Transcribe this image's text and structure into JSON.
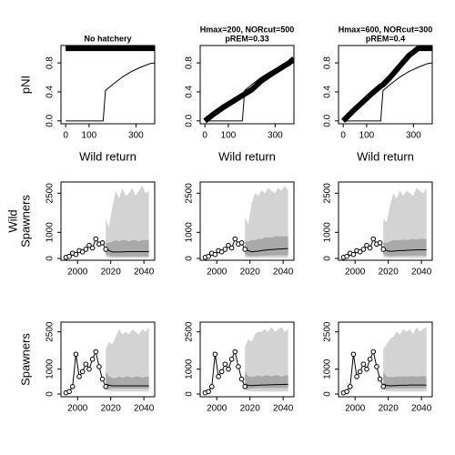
{
  "chart_data": [
    {
      "type": "line",
      "title": [
        "No hatchery"
      ],
      "xlabel": "Wild return",
      "ylabel": [
        "pNI"
      ],
      "x": [
        0,
        40,
        80,
        120,
        160,
        170,
        200,
        240,
        280,
        320,
        360,
        380
      ],
      "series": [
        {
          "color": "#000000",
          "width": 6,
          "values": [
            1,
            1,
            1,
            1,
            1,
            1,
            1,
            1,
            1,
            1,
            1,
            1
          ]
        },
        {
          "color": "#000000",
          "width": 1,
          "values": [
            0,
            0,
            0,
            0,
            0,
            0.42,
            0.5,
            0.6,
            0.68,
            0.74,
            0.79,
            0.8
          ]
        }
      ],
      "xlim": [
        -20,
        380
      ],
      "ylim": [
        -0.04,
        1.04
      ],
      "xticks": [
        0,
        100,
        300
      ],
      "yticks": [
        {
          "value": 0,
          "label": "0.0"
        },
        0.4,
        0.8
      ]
    },
    {
      "type": "line",
      "title": [
        "Hmax=200, NORcut=500",
        "pREM=0.33"
      ],
      "xlabel": "Wild return",
      "x": [
        0,
        40,
        80,
        120,
        160,
        170,
        200,
        240,
        280,
        320,
        360,
        380
      ],
      "series": [
        {
          "color": "#000000",
          "width": 6,
          "values": [
            0,
            0.1,
            0.19,
            0.27,
            0.35,
            0.37,
            0.43,
            0.55,
            0.64,
            0.72,
            0.8,
            0.86
          ]
        },
        {
          "color": "#000000",
          "width": 1,
          "values": [
            0,
            0,
            0,
            0,
            0,
            0.42,
            0.5,
            0.6,
            0.68,
            0.74,
            0.79,
            0.8
          ]
        }
      ],
      "xlim": [
        -20,
        380
      ],
      "ylim": [
        -0.04,
        1.04
      ],
      "xticks": [
        0,
        100,
        300
      ],
      "yticks": [
        {
          "value": 0,
          "label": "0.0"
        },
        0.4,
        0.8
      ]
    },
    {
      "type": "line",
      "title": [
        "Hmax=600, NORcut=300",
        "pREM=0.4"
      ],
      "xlabel": "Wild return",
      "x": [
        0,
        40,
        80,
        120,
        160,
        170,
        200,
        240,
        280,
        320,
        360,
        380
      ],
      "series": [
        {
          "color": "#000000",
          "width": 6,
          "values": [
            0,
            0.13,
            0.25,
            0.37,
            0.48,
            0.5,
            0.6,
            0.75,
            0.9,
            1,
            1,
            1
          ]
        },
        {
          "color": "#000000",
          "width": 1,
          "values": [
            0,
            0,
            0,
            0,
            0,
            0.42,
            0.5,
            0.6,
            0.68,
            0.74,
            0.79,
            0.8
          ]
        }
      ],
      "xlim": [
        -20,
        380
      ],
      "ylim": [
        -0.04,
        1.04
      ],
      "xticks": [
        0,
        100,
        300
      ],
      "yticks": [
        {
          "value": 0,
          "label": "0.0"
        },
        0.4,
        0.8
      ]
    },
    {
      "type": "band",
      "ylabel": [
        "Wild",
        "Spawners"
      ],
      "x": [
        1993,
        1995,
        1997,
        1999,
        2001,
        2003,
        2005,
        2007,
        2009,
        2011,
        2013,
        2015,
        2017
      ],
      "observed": [
        40,
        80,
        200,
        150,
        300,
        250,
        350,
        500,
        400,
        750,
        550,
        600,
        350
      ],
      "proj_x": [
        2017,
        2019,
        2021,
        2023,
        2025,
        2027,
        2029,
        2031,
        2033,
        2035,
        2037,
        2039,
        2041,
        2043
      ],
      "outer": {
        "color": "#d3d3d3",
        "upper": [
          1500,
          1200,
          2000,
          2600,
          2300,
          2700,
          2400,
          2500,
          2700,
          2400,
          2600,
          2800,
          2500,
          2600
        ],
        "lower": [
          50,
          30,
          20,
          20,
          20,
          20,
          20,
          20,
          20,
          20,
          20,
          20,
          20,
          20
        ]
      },
      "inner": {
        "color": "#a9a9a9",
        "upper": [
          600,
          600,
          650,
          700,
          650,
          700,
          700,
          650,
          700,
          700,
          650,
          700,
          700,
          700
        ],
        "lower": [
          150,
          100,
          80,
          80,
          80,
          80,
          80,
          80,
          80,
          80,
          80,
          80,
          80,
          80
        ]
      },
      "median": {
        "color": "#000000",
        "values": [
          350,
          300,
          250,
          250,
          250,
          250,
          260,
          260,
          260,
          260,
          260,
          260,
          260,
          260
        ]
      },
      "xlim": [
        1990,
        2046.5
      ],
      "ylim": [
        -70,
        2930
      ],
      "xticks": [
        2000,
        2020,
        2040
      ],
      "yticks": [
        0,
        1000,
        2500
      ]
    },
    {
      "type": "band",
      "x": [
        1993,
        1995,
        1997,
        1999,
        2001,
        2003,
        2005,
        2007,
        2009,
        2011,
        2013,
        2015,
        2017
      ],
      "observed": [
        40,
        80,
        200,
        150,
        300,
        250,
        350,
        500,
        400,
        750,
        550,
        600,
        350
      ],
      "proj_x": [
        2017,
        2019,
        2021,
        2023,
        2025,
        2027,
        2029,
        2031,
        2033,
        2035,
        2037,
        2039,
        2041,
        2043
      ],
      "outer": {
        "color": "#d3d3d3",
        "upper": [
          1600,
          1300,
          2100,
          2500,
          2400,
          2600,
          2500,
          2700,
          2600,
          2500,
          2700,
          2600,
          2800,
          2600
        ],
        "lower": [
          50,
          30,
          20,
          20,
          20,
          20,
          20,
          20,
          20,
          20,
          20,
          20,
          20,
          20
        ]
      },
      "inner": {
        "color": "#a9a9a9",
        "upper": [
          650,
          650,
          700,
          700,
          750,
          750,
          800,
          800,
          800,
          850,
          850,
          850,
          850,
          850
        ],
        "lower": [
          150,
          100,
          80,
          90,
          100,
          100,
          110,
          110,
          120,
          120,
          120,
          120,
          120,
          120
        ]
      },
      "median": {
        "color": "#000000",
        "values": [
          350,
          300,
          250,
          270,
          280,
          300,
          320,
          330,
          340,
          350,
          360,
          360,
          370,
          380
        ]
      },
      "xlim": [
        1990,
        2046.5
      ],
      "ylim": [
        -70,
        2930
      ],
      "xticks": [
        2000,
        2020,
        2040
      ],
      "yticks": [
        0,
        1000,
        2500
      ]
    },
    {
      "type": "band",
      "x": [
        1993,
        1995,
        1997,
        1999,
        2001,
        2003,
        2005,
        2007,
        2009,
        2011,
        2013,
        2015,
        2017
      ],
      "observed": [
        40,
        80,
        200,
        150,
        300,
        250,
        350,
        500,
        400,
        750,
        550,
        600,
        350
      ],
      "proj_x": [
        2017,
        2019,
        2021,
        2023,
        2025,
        2027,
        2029,
        2031,
        2033,
        2035,
        2037,
        2039,
        2041,
        2043
      ],
      "outer": {
        "color": "#d3d3d3",
        "upper": [
          1500,
          1400,
          2000,
          2500,
          2300,
          2600,
          2400,
          2600,
          2500,
          2400,
          2700,
          2600,
          2500,
          2700
        ],
        "lower": [
          50,
          30,
          20,
          20,
          20,
          20,
          20,
          20,
          20,
          20,
          20,
          20,
          20,
          20
        ]
      },
      "inner": {
        "color": "#a9a9a9",
        "upper": [
          600,
          600,
          650,
          700,
          700,
          700,
          720,
          700,
          720,
          750,
          720,
          750,
          750,
          750
        ],
        "lower": [
          150,
          100,
          80,
          90,
          90,
          100,
          100,
          100,
          110,
          110,
          110,
          110,
          110,
          110
        ]
      },
      "median": {
        "color": "#000000",
        "values": [
          350,
          300,
          270,
          280,
          290,
          300,
          300,
          310,
          320,
          320,
          330,
          330,
          330,
          330
        ]
      },
      "xlim": [
        1990,
        2046.5
      ],
      "ylim": [
        -70,
        2930
      ],
      "xticks": [
        2000,
        2020,
        2040
      ],
      "yticks": [
        0,
        1000,
        2500
      ]
    },
    {
      "type": "band",
      "ylabel": [
        "Spawners"
      ],
      "x": [
        1993,
        1995,
        1997,
        1999,
        2001,
        2003,
        2005,
        2007,
        2009,
        2011,
        2013,
        2015,
        2017
      ],
      "observed": [
        50,
        100,
        300,
        1600,
        700,
        900,
        1200,
        1000,
        1400,
        1700,
        1100,
        600,
        300
      ],
      "proj_x": [
        2017,
        2019,
        2021,
        2023,
        2025,
        2027,
        2029,
        2031,
        2033,
        2035,
        2037,
        2039,
        2041,
        2043
      ],
      "outer": {
        "color": "#d3d3d3",
        "upper": [
          1800,
          2100,
          2000,
          2300,
          2600,
          2400,
          2500,
          2400,
          2600,
          2500,
          2400,
          2600,
          2500,
          2700
        ],
        "lower": [
          150,
          120,
          100,
          100,
          100,
          100,
          100,
          100,
          100,
          100,
          100,
          100,
          100,
          100
        ]
      },
      "inner": {
        "color": "#a9a9a9",
        "upper": [
          900,
          700,
          650,
          650,
          700,
          650,
          700,
          700,
          650,
          700,
          700,
          650,
          700,
          700
        ],
        "lower": [
          200,
          200,
          220,
          220,
          220,
          220,
          220,
          220,
          220,
          220,
          220,
          220,
          220,
          220
        ]
      },
      "median": {
        "color": "#000000",
        "values": [
          400,
          350,
          330,
          330,
          330,
          330,
          330,
          330,
          330,
          330,
          330,
          330,
          330,
          330
        ]
      },
      "xlim": [
        1990,
        2046.5
      ],
      "ylim": [
        -110,
        2890
      ],
      "xticks": [
        2000,
        2020,
        2040
      ],
      "yticks": [
        0,
        1000,
        2500
      ]
    },
    {
      "type": "band",
      "x": [
        1993,
        1995,
        1997,
        1999,
        2001,
        2003,
        2005,
        2007,
        2009,
        2011,
        2013,
        2015,
        2017
      ],
      "observed": [
        50,
        100,
        300,
        1600,
        700,
        900,
        1200,
        1000,
        1400,
        1700,
        1100,
        600,
        300
      ],
      "proj_x": [
        2017,
        2019,
        2021,
        2023,
        2025,
        2027,
        2029,
        2031,
        2033,
        2035,
        2037,
        2039,
        2041,
        2043
      ],
      "outer": {
        "color": "#d3d3d3",
        "upper": [
          1900,
          2200,
          2100,
          2400,
          2500,
          2500,
          2600,
          2500,
          2700,
          2500,
          2600,
          2700,
          2500,
          2600
        ],
        "lower": [
          150,
          120,
          100,
          100,
          100,
          100,
          100,
          100,
          100,
          100,
          100,
          100,
          100,
          100
        ]
      },
      "inner": {
        "color": "#a9a9a9",
        "upper": [
          900,
          700,
          700,
          700,
          750,
          700,
          750,
          750,
          700,
          750,
          750,
          700,
          750,
          750
        ],
        "lower": [
          200,
          200,
          230,
          230,
          240,
          240,
          240,
          240,
          240,
          240,
          240,
          240,
          240,
          240
        ]
      },
      "median": {
        "color": "#000000",
        "values": [
          400,
          350,
          340,
          350,
          350,
          360,
          360,
          370,
          370,
          380,
          380,
          380,
          390,
          390
        ]
      },
      "xlim": [
        1990,
        2046.5
      ],
      "ylim": [
        -110,
        2890
      ],
      "xticks": [
        2000,
        2020,
        2040
      ],
      "yticks": [
        0,
        1000,
        2500
      ]
    },
    {
      "type": "band",
      "x": [
        1993,
        1995,
        1997,
        1999,
        2001,
        2003,
        2005,
        2007,
        2009,
        2011,
        2013,
        2015,
        2017
      ],
      "observed": [
        50,
        100,
        300,
        1600,
        700,
        900,
        1200,
        1000,
        1400,
        1700,
        1100,
        600,
        300
      ],
      "proj_x": [
        2017,
        2019,
        2021,
        2023,
        2025,
        2027,
        2029,
        2031,
        2033,
        2035,
        2037,
        2039,
        2041,
        2043
      ],
      "outer": {
        "color": "#d3d3d3",
        "upper": [
          1800,
          2000,
          2200,
          2300,
          2500,
          2400,
          2600,
          2500,
          2600,
          2400,
          2700,
          2500,
          2600,
          2700
        ],
        "lower": [
          150,
          120,
          100,
          100,
          100,
          100,
          100,
          100,
          100,
          100,
          100,
          100,
          100,
          100
        ]
      },
      "inner": {
        "color": "#a9a9a9",
        "upper": [
          900,
          700,
          680,
          680,
          700,
          700,
          720,
          700,
          720,
          720,
          700,
          720,
          720,
          720
        ],
        "lower": [
          200,
          200,
          220,
          230,
          230,
          230,
          230,
          230,
          230,
          230,
          230,
          230,
          230,
          230
        ]
      },
      "median": {
        "color": "#000000",
        "values": [
          400,
          350,
          330,
          340,
          340,
          350,
          350,
          350,
          360,
          360,
          360,
          360,
          360,
          360
        ]
      },
      "xlim": [
        1990,
        2046.5
      ],
      "ylim": [
        -110,
        2890
      ],
      "xticks": [
        2000,
        2020,
        2040
      ],
      "yticks": [
        0,
        1000,
        2500
      ]
    }
  ]
}
